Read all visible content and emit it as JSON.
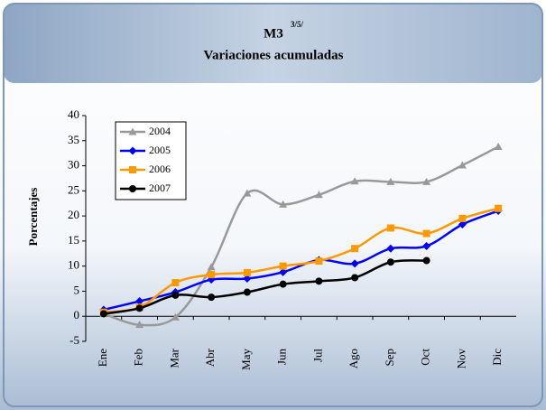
{
  "chart_data": {
    "type": "line",
    "title": "M3",
    "title_superscript": "3/5/",
    "subtitle": "Variaciones acumuladas",
    "y_label": "Porcentajes",
    "categories": [
      "Ene",
      "Feb",
      "Mar",
      "Abr",
      "May",
      "Jun",
      "Jul",
      "Ago",
      "Sep",
      "Oct",
      "Nov",
      "Dic"
    ],
    "series": [
      {
        "name": "2004",
        "color": "#999999",
        "marker": "triangle",
        "values": [
          0.5,
          -1.7,
          -0.2,
          9.8,
          24.5,
          22.3,
          24.2,
          26.9,
          26.8,
          26.8,
          30.1,
          33.8
        ]
      },
      {
        "name": "2005",
        "color": "#0000ff",
        "marker": "diamond",
        "values": [
          1.3,
          3.0,
          4.8,
          7.3,
          7.5,
          8.8,
          11.2,
          10.5,
          13.5,
          14.0,
          18.3,
          21.0
        ]
      },
      {
        "name": "2006",
        "color": "#ff9900",
        "marker": "square",
        "values": [
          0.8,
          1.8,
          6.7,
          8.3,
          8.7,
          10.0,
          11.0,
          13.5,
          17.6,
          16.5,
          19.5,
          21.5
        ]
      },
      {
        "name": "2007",
        "color": "#000000",
        "marker": "circle",
        "values": [
          0.5,
          1.6,
          4.2,
          3.8,
          4.8,
          6.4,
          7.0,
          7.7,
          10.8,
          11.1,
          null,
          null
        ]
      }
    ],
    "ylim": [
      -5,
      40
    ],
    "yticks": [
      -5,
      0,
      5,
      10,
      15,
      20,
      25,
      30,
      35,
      40
    ],
    "legend": "top-left",
    "smooth": true
  }
}
